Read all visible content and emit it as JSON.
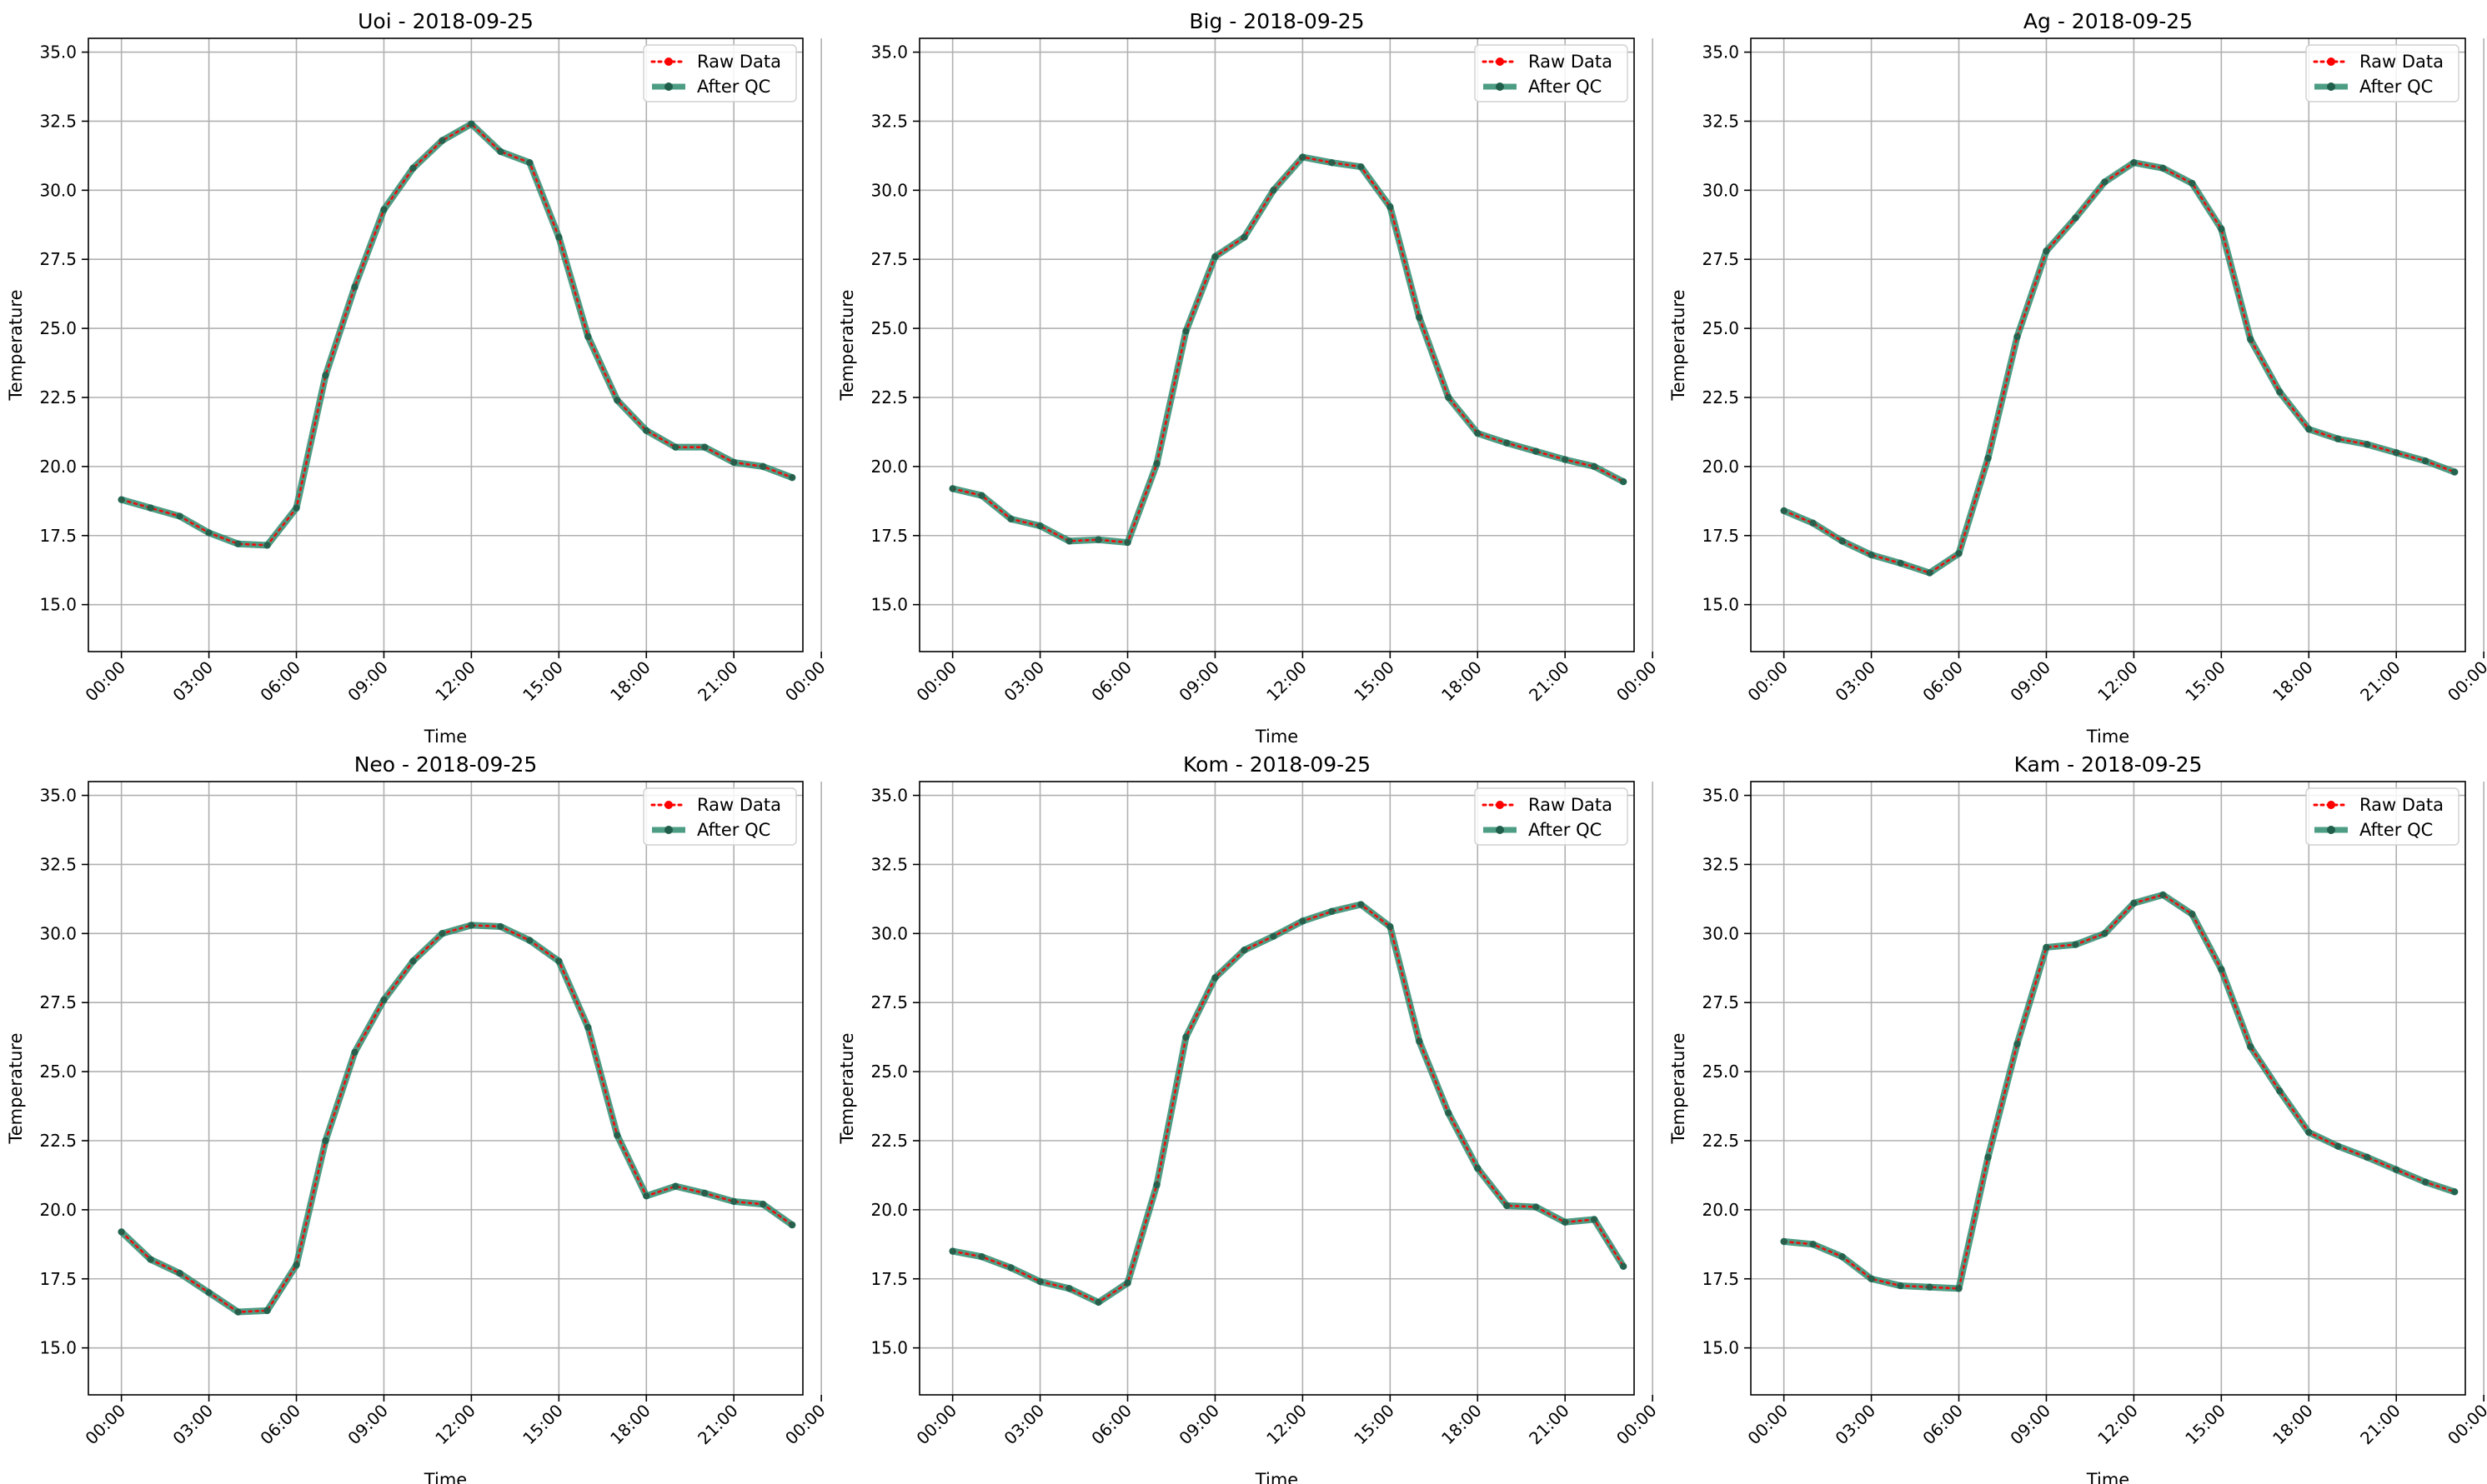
{
  "colors": {
    "raw": "#ff0000",
    "qc": "#2e8b6f",
    "qc_marker": "#1f5e4a",
    "grid": "#b0b0b0"
  },
  "chart_data": [
    {
      "type": "line",
      "title": "Uoi - 2018-09-25",
      "xlabel": "Time",
      "ylabel": "Temperature",
      "x": [
        "00:00",
        "01:00",
        "02:00",
        "03:00",
        "04:00",
        "05:00",
        "06:00",
        "07:00",
        "08:00",
        "09:00",
        "10:00",
        "11:00",
        "12:00",
        "13:00",
        "14:00",
        "15:00",
        "16:00",
        "17:00",
        "18:00",
        "19:00",
        "20:00",
        "21:00",
        "22:00",
        "23:00"
      ],
      "xticks": [
        "00:00",
        "03:00",
        "06:00",
        "09:00",
        "12:00",
        "15:00",
        "18:00",
        "21:00",
        "00:00"
      ],
      "ylim": [
        13.3,
        35.5
      ],
      "yticks": [
        "15.0",
        "17.5",
        "20.0",
        "22.5",
        "25.0",
        "27.5",
        "30.0",
        "32.5",
        "35.0"
      ],
      "grid": true,
      "legend": "top-right",
      "series": [
        {
          "name": "Raw Data",
          "values": [
            18.8,
            18.5,
            18.2,
            17.6,
            17.2,
            17.15,
            18.5,
            23.3,
            26.5,
            29.3,
            30.8,
            31.8,
            32.4,
            31.4,
            31.0,
            28.3,
            24.7,
            22.4,
            21.3,
            20.7,
            20.7,
            20.15,
            20.0,
            19.6
          ]
        },
        {
          "name": "After QC",
          "values": [
            18.8,
            18.5,
            18.2,
            17.6,
            17.2,
            17.15,
            18.5,
            23.3,
            26.5,
            29.3,
            30.8,
            31.8,
            32.4,
            31.4,
            31.0,
            28.3,
            24.7,
            22.4,
            21.3,
            20.7,
            20.7,
            20.15,
            20.0,
            19.6
          ]
        }
      ]
    },
    {
      "type": "line",
      "title": "Big - 2018-09-25",
      "xlabel": "Time",
      "ylabel": "Temperature",
      "x": [
        "00:00",
        "01:00",
        "02:00",
        "03:00",
        "04:00",
        "05:00",
        "06:00",
        "07:00",
        "08:00",
        "09:00",
        "10:00",
        "11:00",
        "12:00",
        "13:00",
        "14:00",
        "15:00",
        "16:00",
        "17:00",
        "18:00",
        "19:00",
        "20:00",
        "21:00",
        "22:00",
        "23:00"
      ],
      "xticks": [
        "00:00",
        "03:00",
        "06:00",
        "09:00",
        "12:00",
        "15:00",
        "18:00",
        "21:00",
        "00:00"
      ],
      "ylim": [
        13.3,
        35.5
      ],
      "yticks": [
        "15.0",
        "17.5",
        "20.0",
        "22.5",
        "25.0",
        "27.5",
        "30.0",
        "32.5",
        "35.0"
      ],
      "grid": true,
      "legend": "top-right",
      "series": [
        {
          "name": "Raw Data",
          "values": [
            19.2,
            18.95,
            18.1,
            17.85,
            17.3,
            17.35,
            17.25,
            20.1,
            24.9,
            27.6,
            28.3,
            30.0,
            31.2,
            31.0,
            30.85,
            29.4,
            25.4,
            22.5,
            21.2,
            20.85,
            20.55,
            20.25,
            20.0,
            19.45
          ]
        },
        {
          "name": "After QC",
          "values": [
            19.2,
            18.95,
            18.1,
            17.85,
            17.3,
            17.35,
            17.25,
            20.1,
            24.9,
            27.6,
            28.3,
            30.0,
            31.2,
            31.0,
            30.85,
            29.4,
            25.4,
            22.5,
            21.2,
            20.85,
            20.55,
            20.25,
            20.0,
            19.45
          ]
        }
      ]
    },
    {
      "type": "line",
      "title": "Ag - 2018-09-25",
      "xlabel": "Time",
      "ylabel": "Temperature",
      "x": [
        "00:00",
        "01:00",
        "02:00",
        "03:00",
        "04:00",
        "05:00",
        "06:00",
        "07:00",
        "08:00",
        "09:00",
        "10:00",
        "11:00",
        "12:00",
        "13:00",
        "14:00",
        "15:00",
        "16:00",
        "17:00",
        "18:00",
        "19:00",
        "20:00",
        "21:00",
        "22:00",
        "23:00"
      ],
      "xticks": [
        "00:00",
        "03:00",
        "06:00",
        "09:00",
        "12:00",
        "15:00",
        "18:00",
        "21:00",
        "00:00"
      ],
      "ylim": [
        13.3,
        35.5
      ],
      "yticks": [
        "15.0",
        "17.5",
        "20.0",
        "22.5",
        "25.0",
        "27.5",
        "30.0",
        "32.5",
        "35.0"
      ],
      "grid": true,
      "legend": "top-right",
      "series": [
        {
          "name": "Raw Data",
          "values": [
            18.4,
            17.95,
            17.3,
            16.8,
            16.5,
            16.15,
            16.85,
            20.3,
            24.7,
            27.8,
            29.0,
            30.3,
            31.0,
            30.8,
            30.25,
            28.6,
            24.6,
            22.7,
            21.35,
            21.0,
            20.8,
            20.5,
            20.2,
            19.8
          ]
        },
        {
          "name": "After QC",
          "values": [
            18.4,
            17.95,
            17.3,
            16.8,
            16.5,
            16.15,
            16.85,
            20.3,
            24.7,
            27.8,
            29.0,
            30.3,
            31.0,
            30.8,
            30.25,
            28.6,
            24.6,
            22.7,
            21.35,
            21.0,
            20.8,
            20.5,
            20.2,
            19.8
          ]
        }
      ]
    },
    {
      "type": "line",
      "title": "Neo - 2018-09-25",
      "xlabel": "Time",
      "ylabel": "Temperature",
      "x": [
        "00:00",
        "01:00",
        "02:00",
        "03:00",
        "04:00",
        "05:00",
        "06:00",
        "07:00",
        "08:00",
        "09:00",
        "10:00",
        "11:00",
        "12:00",
        "13:00",
        "14:00",
        "15:00",
        "16:00",
        "17:00",
        "18:00",
        "19:00",
        "20:00",
        "21:00",
        "22:00",
        "23:00"
      ],
      "xticks": [
        "00:00",
        "03:00",
        "06:00",
        "09:00",
        "12:00",
        "15:00",
        "18:00",
        "21:00",
        "00:00"
      ],
      "ylim": [
        13.3,
        35.5
      ],
      "yticks": [
        "15.0",
        "17.5",
        "20.0",
        "22.5",
        "25.0",
        "27.5",
        "30.0",
        "32.5",
        "35.0"
      ],
      "grid": true,
      "legend": "top-right",
      "series": [
        {
          "name": "Raw Data",
          "values": [
            19.2,
            18.2,
            17.7,
            17.0,
            16.3,
            16.35,
            18.0,
            22.5,
            25.7,
            27.6,
            29.0,
            30.0,
            30.3,
            30.25,
            29.75,
            29.0,
            26.6,
            22.7,
            20.5,
            20.85,
            20.6,
            20.3,
            20.2,
            19.45
          ]
        },
        {
          "name": "After QC",
          "values": [
            19.2,
            18.2,
            17.7,
            17.0,
            16.3,
            16.35,
            18.0,
            22.5,
            25.7,
            27.6,
            29.0,
            30.0,
            30.3,
            30.25,
            29.75,
            29.0,
            26.6,
            22.7,
            20.5,
            20.85,
            20.6,
            20.3,
            20.2,
            19.45
          ]
        }
      ]
    },
    {
      "type": "line",
      "title": "Kom - 2018-09-25",
      "xlabel": "Time",
      "ylabel": "Temperature",
      "x": [
        "00:00",
        "01:00",
        "02:00",
        "03:00",
        "04:00",
        "05:00",
        "06:00",
        "07:00",
        "08:00",
        "09:00",
        "10:00",
        "11:00",
        "12:00",
        "13:00",
        "14:00",
        "15:00",
        "16:00",
        "17:00",
        "18:00",
        "19:00",
        "20:00",
        "21:00",
        "22:00",
        "23:00"
      ],
      "xticks": [
        "00:00",
        "03:00",
        "06:00",
        "09:00",
        "12:00",
        "15:00",
        "18:00",
        "21:00",
        "00:00"
      ],
      "ylim": [
        13.3,
        35.5
      ],
      "yticks": [
        "15.0",
        "17.5",
        "20.0",
        "22.5",
        "25.0",
        "27.5",
        "30.0",
        "32.5",
        "35.0"
      ],
      "grid": true,
      "legend": "top-right",
      "series": [
        {
          "name": "Raw Data",
          "values": [
            18.5,
            18.3,
            17.9,
            17.4,
            17.15,
            16.65,
            17.35,
            20.9,
            26.25,
            28.4,
            29.4,
            29.9,
            30.45,
            30.8,
            31.05,
            30.25,
            26.1,
            23.5,
            21.5,
            20.15,
            20.1,
            19.55,
            19.65,
            17.95
          ]
        },
        {
          "name": "After QC",
          "values": [
            18.5,
            18.3,
            17.9,
            17.4,
            17.15,
            16.65,
            17.35,
            20.9,
            26.25,
            28.4,
            29.4,
            29.9,
            30.45,
            30.8,
            31.05,
            30.25,
            26.1,
            23.5,
            21.5,
            20.15,
            20.1,
            19.55,
            19.65,
            17.95
          ]
        }
      ]
    },
    {
      "type": "line",
      "title": "Kam - 2018-09-25",
      "xlabel": "Time",
      "ylabel": "Temperature",
      "x": [
        "00:00",
        "01:00",
        "02:00",
        "03:00",
        "04:00",
        "05:00",
        "06:00",
        "07:00",
        "08:00",
        "09:00",
        "10:00",
        "11:00",
        "12:00",
        "13:00",
        "14:00",
        "15:00",
        "16:00",
        "17:00",
        "18:00",
        "19:00",
        "20:00",
        "21:00",
        "22:00",
        "23:00"
      ],
      "xticks": [
        "00:00",
        "03:00",
        "06:00",
        "09:00",
        "12:00",
        "15:00",
        "18:00",
        "21:00",
        "00:00"
      ],
      "ylim": [
        13.3,
        35.5
      ],
      "yticks": [
        "15.0",
        "17.5",
        "20.0",
        "22.5",
        "25.0",
        "27.5",
        "30.0",
        "32.5",
        "35.0"
      ],
      "grid": true,
      "legend": "top-right",
      "series": [
        {
          "name": "Raw Data",
          "values": [
            18.85,
            18.75,
            18.3,
            17.5,
            17.25,
            17.2,
            17.15,
            21.9,
            26.0,
            29.5,
            29.6,
            30.0,
            31.1,
            31.4,
            30.7,
            28.7,
            25.9,
            24.3,
            22.8,
            22.3,
            21.9,
            21.45,
            21.0,
            20.65
          ]
        },
        {
          "name": "After QC",
          "values": [
            18.85,
            18.75,
            18.3,
            17.5,
            17.25,
            17.2,
            17.15,
            21.9,
            26.0,
            29.5,
            29.6,
            30.0,
            31.1,
            31.4,
            30.7,
            28.7,
            25.9,
            24.3,
            22.8,
            22.3,
            21.9,
            21.45,
            21.0,
            20.65
          ]
        }
      ]
    }
  ]
}
